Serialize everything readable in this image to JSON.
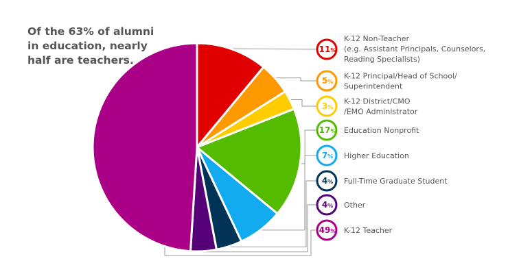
{
  "headline": "Of the 63% of alumni in education, nearly half are teachers.",
  "chart_data": {
    "type": "pie",
    "title": "Of the 63% of alumni in education, nearly half are teachers.",
    "slices": [
      {
        "label": "K-12 Non-Teacher",
        "label_lines": [
          "K-12 Non-Teacher",
          "(e.g. Assistant Principals, Counselors,",
          "Reading Specialists)"
        ],
        "value": 11,
        "display": "11",
        "color": "#e00000"
      },
      {
        "label": "K-12 Principal/Head of School/Superintendent",
        "label_lines": [
          "K-12 Principal/Head of School/",
          "Superintendent"
        ],
        "value": 5,
        "display": "5",
        "color": "#ff9900"
      },
      {
        "label": "K-12 District/CMO/EMO Administrator",
        "label_lines": [
          "K-12 District/CMO",
          "/EMO Administrator"
        ],
        "value": 3,
        "display": "3",
        "color": "#ffcc00"
      },
      {
        "label": "Education Nonprofit",
        "label_lines": [
          "Education Nonprofit"
        ],
        "value": 17,
        "display": "17",
        "color": "#55bb00"
      },
      {
        "label": "Higher Education",
        "label_lines": [
          "Higher Education"
        ],
        "value": 7,
        "display": "7",
        "color": "#11aaee"
      },
      {
        "label": "Full-Time Graduate Student",
        "label_lines": [
          "Full-Time Graduate Student"
        ],
        "value": 4,
        "display": "4",
        "color": "#003355"
      },
      {
        "label": "Other",
        "label_lines": [
          "Other"
        ],
        "value": 4,
        "display": "4",
        "color": "#550077"
      },
      {
        "label": "K-12 Teacher",
        "label_lines": [
          "K-12 Teacher"
        ],
        "value": 49,
        "display": "49",
        "color": "#aa0088"
      }
    ],
    "percent_suffix": "%",
    "legend_position": "right"
  }
}
